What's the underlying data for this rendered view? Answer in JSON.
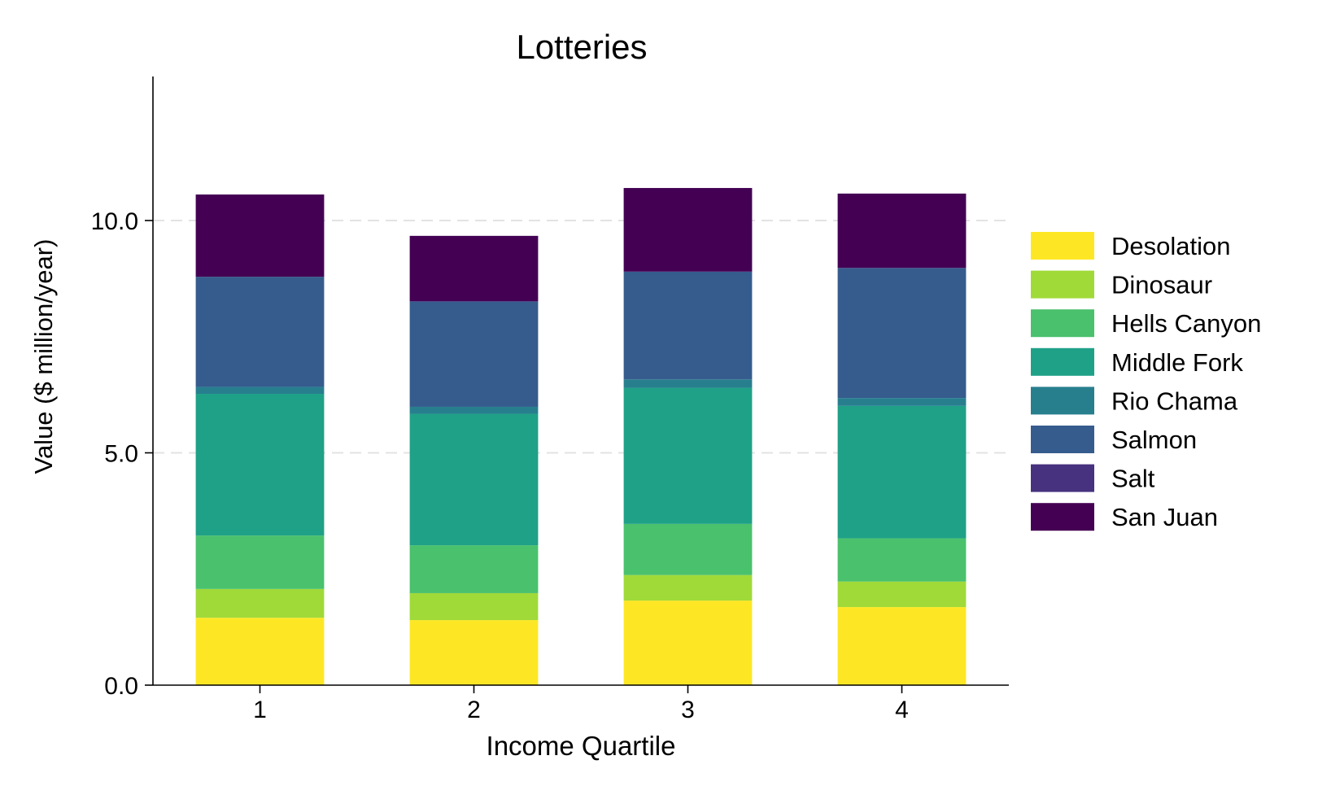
{
  "chart_data": {
    "type": "bar",
    "stacked": true,
    "title": "Lotteries",
    "xlabel": "Income Quartile",
    "ylabel": "Value ($ million/year)",
    "categories": [
      "1",
      "2",
      "3",
      "4"
    ],
    "ylim": [
      0,
      13.1
    ],
    "yticks": [
      0,
      5,
      10
    ],
    "ytick_labels": [
      "0.0",
      "5.0",
      "10.0"
    ],
    "grid": "horizontal dashed",
    "legend_position": "right",
    "series": [
      {
        "name": "Desolation",
        "color": "#fde725",
        "values": [
          1.45,
          1.4,
          1.82,
          1.68
        ]
      },
      {
        "name": "Dinosaur",
        "color": "#a0da39",
        "values": [
          0.62,
          0.58,
          0.55,
          0.55
        ]
      },
      {
        "name": "Hells Canyon",
        "color": "#4ac16d",
        "values": [
          1.15,
          1.03,
          1.1,
          0.93
        ]
      },
      {
        "name": "Middle Fork",
        "color": "#1fa187",
        "values": [
          3.05,
          2.83,
          2.93,
          2.85
        ]
      },
      {
        "name": "Rio Chama",
        "color": "#277f8e",
        "values": [
          0.15,
          0.15,
          0.18,
          0.17
        ]
      },
      {
        "name": "Salmon",
        "color": "#365c8d",
        "values": [
          2.37,
          2.27,
          2.32,
          2.8
        ]
      },
      {
        "name": "Salt",
        "color": "#46327e",
        "values": [
          0.0,
          0.0,
          0.0,
          0.0
        ]
      },
      {
        "name": "San Juan",
        "color": "#440154",
        "values": [
          1.77,
          1.41,
          1.8,
          1.6
        ]
      }
    ]
  }
}
